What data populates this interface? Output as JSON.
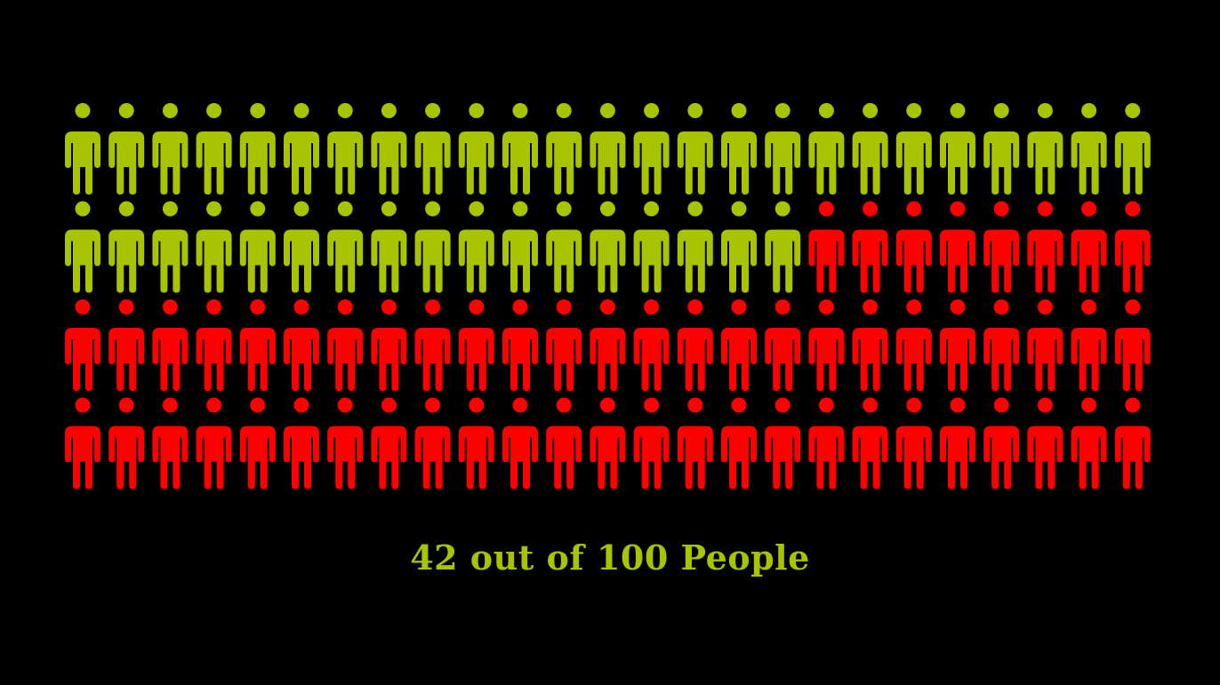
{
  "chart_data": {
    "type": "pictograph",
    "total": 100,
    "highlighted": 42,
    "columns": 25,
    "rows": 4,
    "icon": "person-icon",
    "colors": {
      "background": "#000000",
      "highlighted": "#a8c300",
      "rest": "#ff0000"
    },
    "caption": "42 out of 100 People"
  }
}
